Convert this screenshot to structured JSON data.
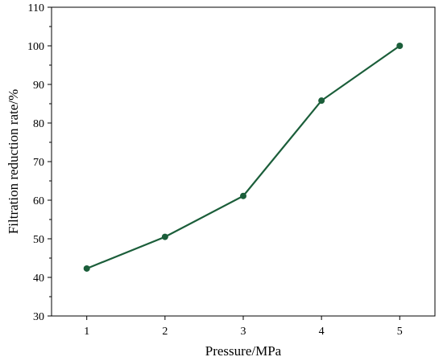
{
  "chart_data": {
    "type": "line",
    "xlabel": "Pressure/MPa",
    "ylabel": "Filtration reduction rate/%",
    "x": [
      1,
      2,
      3,
      4,
      5
    ],
    "xticks": [
      1,
      2,
      3,
      4,
      5
    ],
    "xlim": [
      0.55,
      5.45
    ],
    "yticks": [
      30,
      40,
      50,
      60,
      70,
      80,
      90,
      100,
      110
    ],
    "ylim": [
      30,
      110
    ],
    "grid": false,
    "series": [
      {
        "values": [
          42.3,
          50.5,
          61.1,
          85.8,
          100.0
        ],
        "color": "#1b5e3a"
      }
    ]
  }
}
